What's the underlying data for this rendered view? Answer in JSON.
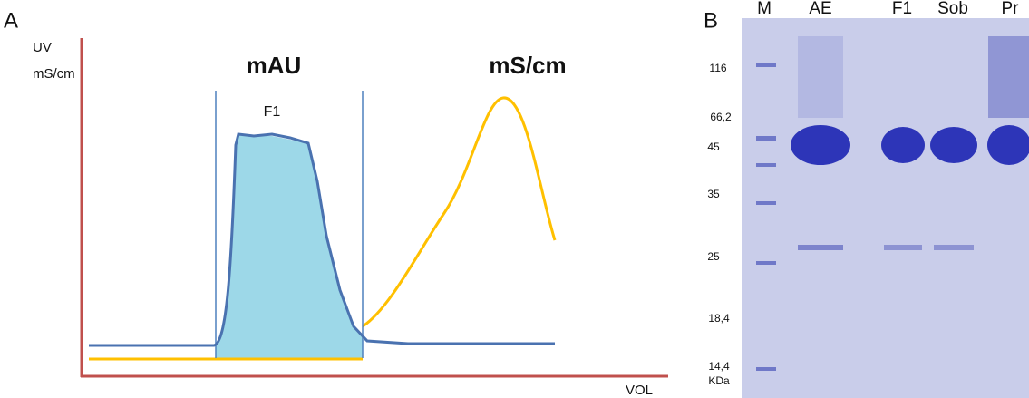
{
  "panel_a": {
    "label": "A",
    "y_axis_labels": [
      "UV",
      "mS/cm"
    ],
    "x_axis_label": "VOL",
    "traces": [
      "mAU",
      "mS/cm"
    ],
    "fraction": "F1"
  },
  "panel_b": {
    "label": "B",
    "lanes": [
      "M",
      "AE",
      "F1",
      "Sob",
      "Pr"
    ],
    "markers": [
      "116",
      "66,2",
      "45",
      "35",
      "25",
      "18,4",
      "14,4"
    ],
    "unit": "KDa"
  }
}
